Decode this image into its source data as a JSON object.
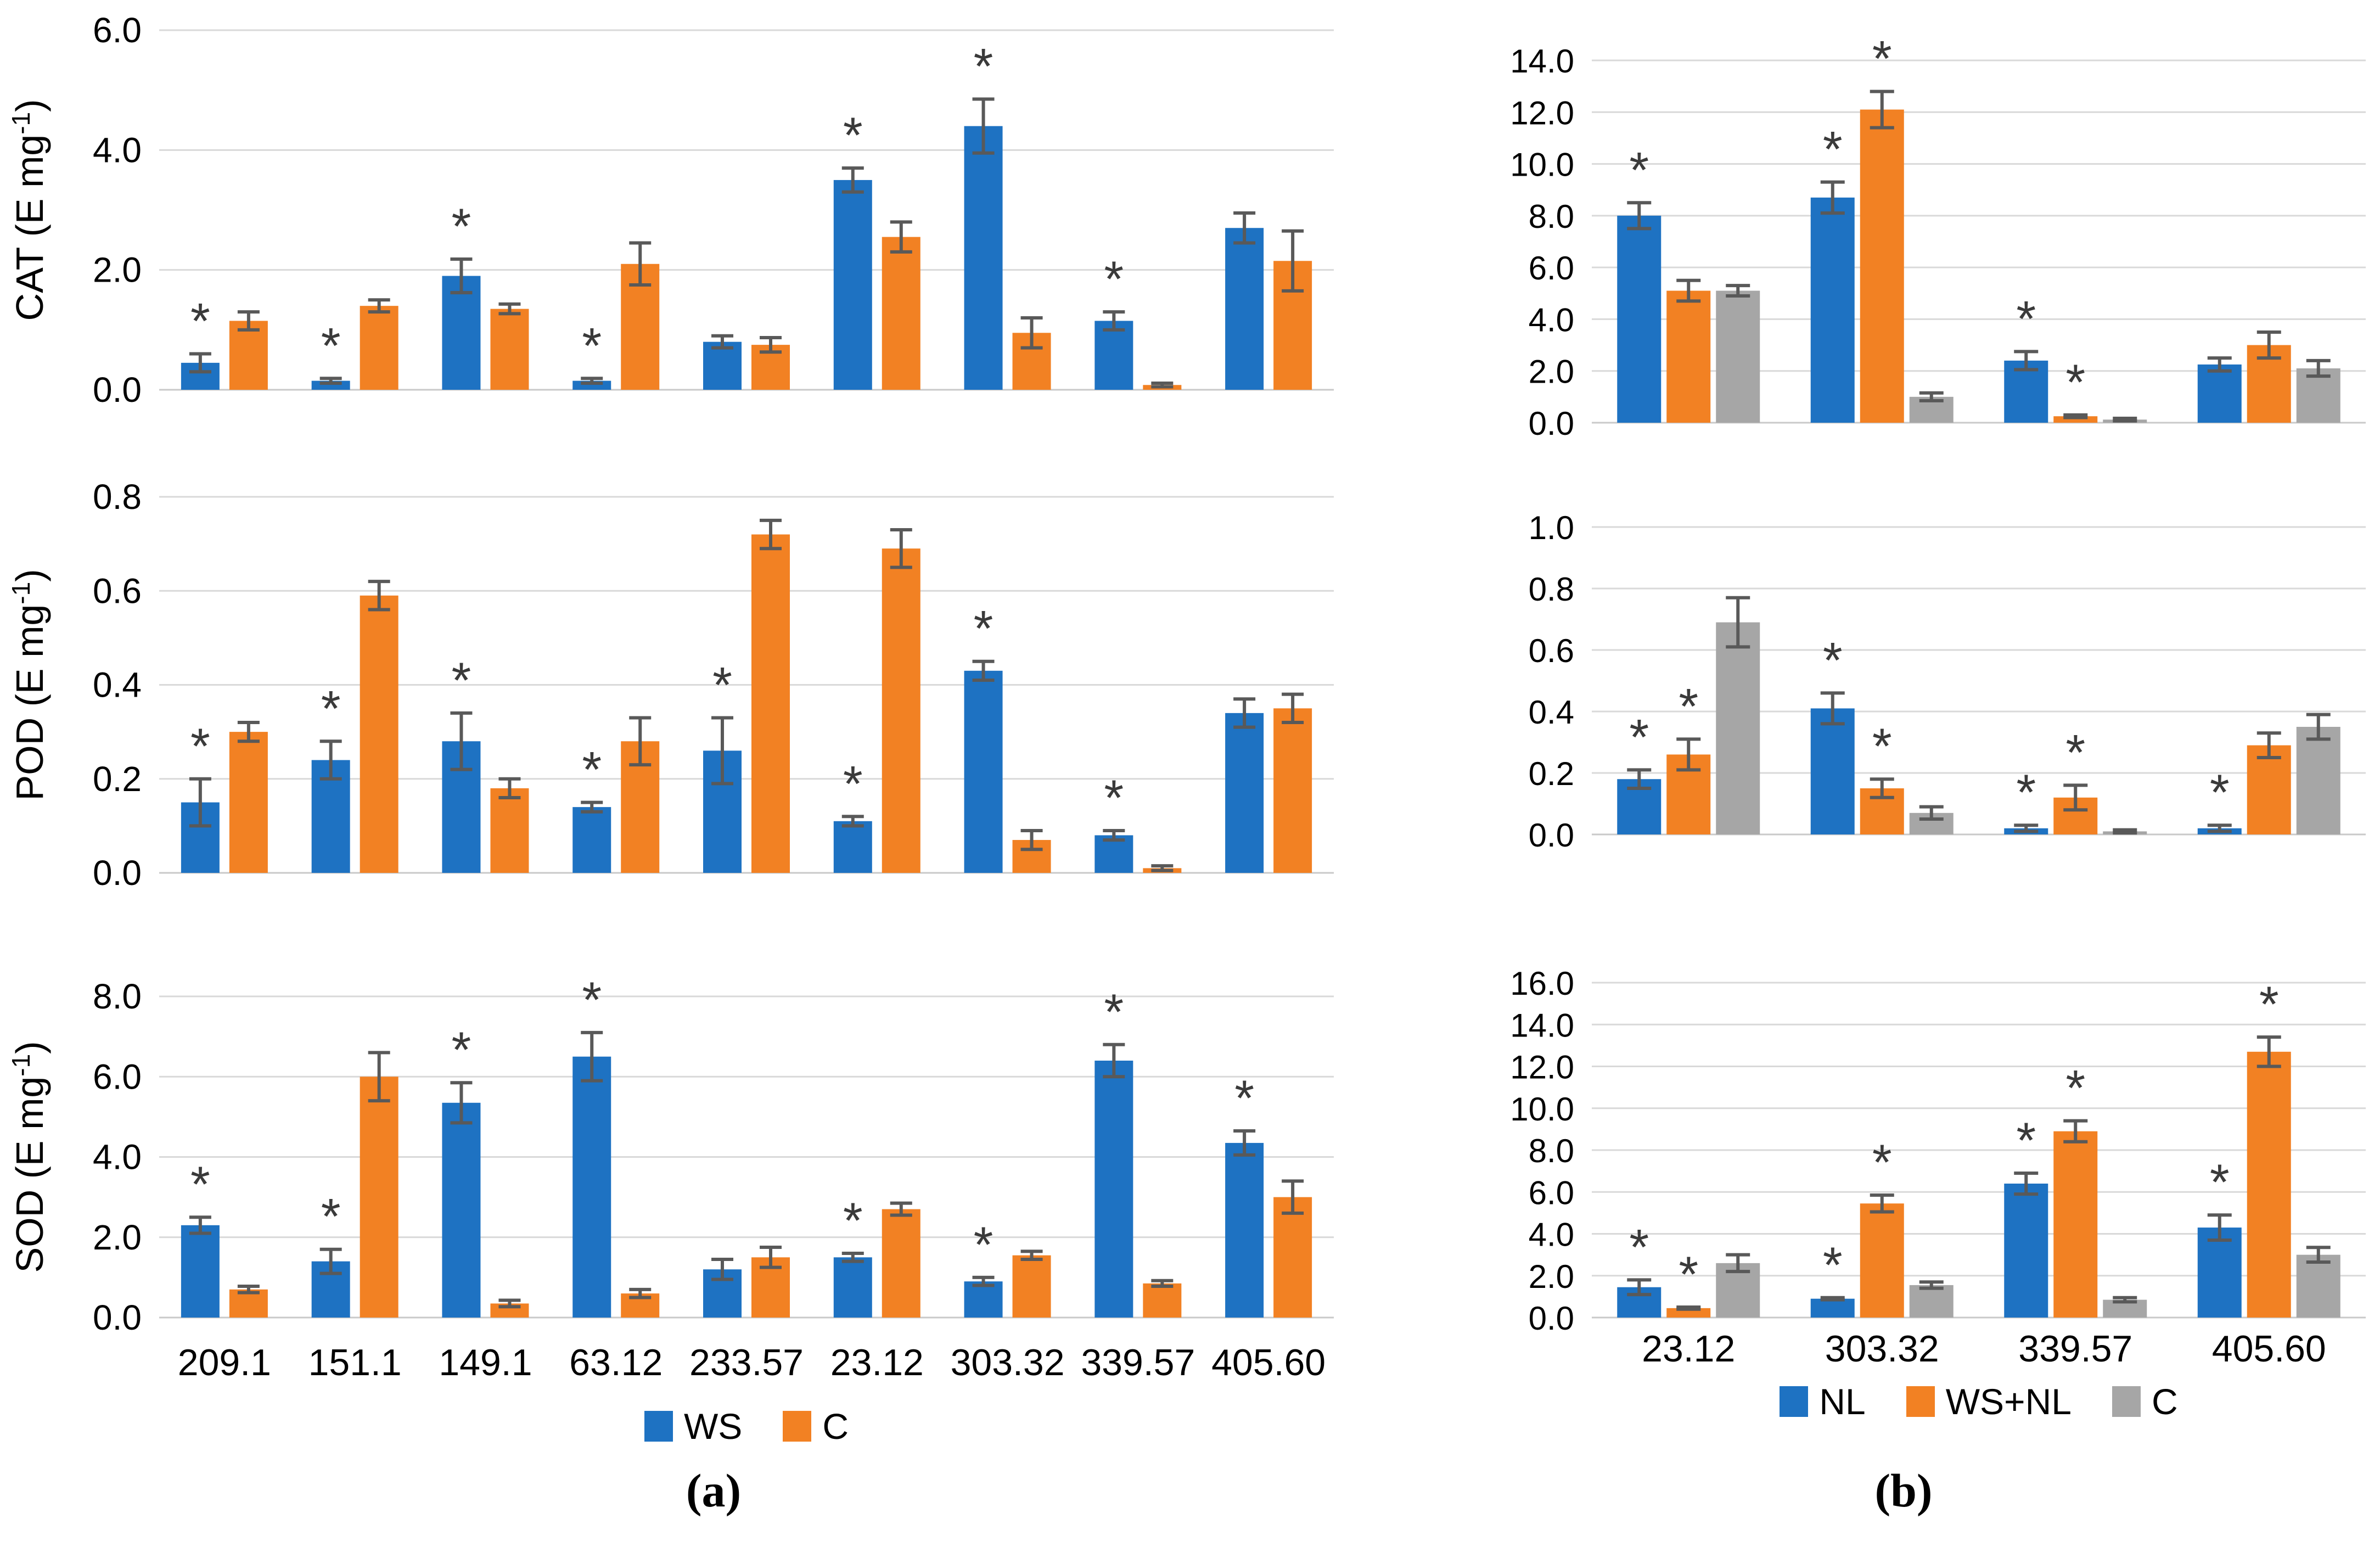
{
  "panels": [
    {
      "id": "a",
      "caption": "(a)",
      "legend": [
        {
          "label": "WS",
          "color": "#1e72c2"
        },
        {
          "label": "C",
          "color": "#f28123"
        }
      ]
    },
    {
      "id": "b",
      "caption": "(b)",
      "legend": [
        {
          "label": "NL",
          "color": "#1e72c2"
        },
        {
          "label": "WS+NL",
          "color": "#f28123"
        },
        {
          "label": "C",
          "color": "#a6a6a6"
        }
      ]
    }
  ],
  "colors": {
    "blue": "#1e72c2",
    "orange": "#f28123",
    "gray": "#a6a6a6",
    "error_bar": "#595959",
    "gridline": "#d9d9d9",
    "axis_line": "#c9c9c9",
    "significance": "#3a3a3a",
    "text": "#000000"
  },
  "significance_marker": "*",
  "chart_data": [
    {
      "type": "bar",
      "panel": "a",
      "ylabel": "CAT (E mg-1)",
      "ylabel_main": "CAT (E mg",
      "ylabel_sup": "-1",
      "ylabel_close": ")",
      "ylim": [
        0,
        6.0
      ],
      "ystep": 2.0,
      "grid": true,
      "legend_position": "none",
      "categories": [
        "209.1",
        "151.1",
        "149.1",
        "63.12",
        "233.57",
        "23.12",
        "303.32",
        "339.57",
        "405.60"
      ],
      "series": [
        {
          "name": "WS",
          "color": "#1e72c2",
          "values": [
            0.45,
            0.15,
            1.9,
            0.15,
            0.8,
            3.5,
            4.4,
            1.15,
            2.7
          ],
          "errors": [
            0.15,
            0.04,
            0.28,
            0.04,
            0.1,
            0.2,
            0.45,
            0.15,
            0.25
          ],
          "sig": [
            true,
            true,
            true,
            true,
            false,
            true,
            true,
            true,
            false
          ]
        },
        {
          "name": "C",
          "color": "#f28123",
          "values": [
            1.15,
            1.4,
            1.35,
            2.1,
            0.75,
            2.55,
            0.95,
            0.08,
            2.15
          ],
          "errors": [
            0.15,
            0.1,
            0.08,
            0.35,
            0.12,
            0.25,
            0.25,
            0.03,
            0.5
          ],
          "sig": [
            false,
            false,
            false,
            false,
            false,
            false,
            false,
            false,
            false
          ]
        }
      ]
    },
    {
      "type": "bar",
      "panel": "a",
      "ylabel": "POD (E mg-1)",
      "ylabel_main": "POD (E mg",
      "ylabel_sup": "-1",
      "ylabel_close": ")",
      "ylim": [
        0,
        0.8
      ],
      "ystep": 0.2,
      "grid": true,
      "legend_position": "none",
      "categories": [
        "209.1",
        "151.1",
        "149.1",
        "63.12",
        "233.57",
        "23.12",
        "303.32",
        "339.57",
        "405.60"
      ],
      "series": [
        {
          "name": "WS",
          "color": "#1e72c2",
          "values": [
            0.15,
            0.24,
            0.28,
            0.14,
            0.26,
            0.11,
            0.43,
            0.08,
            0.34
          ],
          "errors": [
            0.05,
            0.04,
            0.06,
            0.01,
            0.07,
            0.01,
            0.02,
            0.01,
            0.03
          ],
          "sig": [
            true,
            true,
            true,
            true,
            true,
            true,
            true,
            true,
            false
          ]
        },
        {
          "name": "C",
          "color": "#f28123",
          "values": [
            0.3,
            0.59,
            0.18,
            0.28,
            0.72,
            0.69,
            0.07,
            0.01,
            0.35
          ],
          "errors": [
            0.02,
            0.03,
            0.02,
            0.05,
            0.03,
            0.04,
            0.02,
            0.005,
            0.03
          ],
          "sig": [
            false,
            false,
            false,
            false,
            false,
            false,
            false,
            false,
            false
          ]
        }
      ]
    },
    {
      "type": "bar",
      "panel": "a",
      "ylabel": "SOD (E mg-1)",
      "ylabel_main": "SOD (E mg",
      "ylabel_sup": "-1",
      "ylabel_close": ")",
      "ylim": [
        0,
        8.0
      ],
      "ystep": 2.0,
      "grid": true,
      "legend_position": "bottom",
      "categories": [
        "209.1",
        "151.1",
        "149.1",
        "63.12",
        "233.57",
        "23.12",
        "303.32",
        "339.57",
        "405.60"
      ],
      "series": [
        {
          "name": "WS",
          "color": "#1e72c2",
          "values": [
            2.3,
            1.4,
            5.35,
            6.5,
            1.2,
            1.5,
            0.9,
            6.4,
            4.35
          ],
          "errors": [
            0.2,
            0.3,
            0.5,
            0.6,
            0.25,
            0.1,
            0.1,
            0.4,
            0.3
          ],
          "sig": [
            true,
            true,
            true,
            true,
            false,
            true,
            true,
            true,
            true
          ]
        },
        {
          "name": "C",
          "color": "#f28123",
          "values": [
            0.7,
            6.0,
            0.35,
            0.6,
            1.5,
            2.7,
            1.55,
            0.85,
            3.0
          ],
          "errors": [
            0.08,
            0.6,
            0.08,
            0.1,
            0.25,
            0.15,
            0.1,
            0.07,
            0.4
          ],
          "sig": [
            false,
            false,
            false,
            false,
            false,
            false,
            false,
            false,
            false
          ]
        }
      ]
    },
    {
      "type": "bar",
      "panel": "b",
      "ylim": [
        0,
        14.0
      ],
      "ystep": 2.0,
      "grid": true,
      "legend_position": "none",
      "categories": [
        "23.12",
        "303.32",
        "339.57",
        "405.60"
      ],
      "series": [
        {
          "name": "NL",
          "color": "#1e72c2",
          "values": [
            8.0,
            8.7,
            2.4,
            2.25
          ],
          "errors": [
            0.5,
            0.6,
            0.35,
            0.25
          ],
          "sig": [
            true,
            true,
            true,
            false
          ]
        },
        {
          "name": "WS+NL",
          "color": "#f28123",
          "values": [
            5.1,
            12.1,
            0.25,
            3.0
          ],
          "errors": [
            0.4,
            0.7,
            0.05,
            0.5
          ],
          "sig": [
            false,
            true,
            true,
            false
          ]
        },
        {
          "name": "C",
          "color": "#a6a6a6",
          "values": [
            5.1,
            1.0,
            0.12,
            2.1
          ],
          "errors": [
            0.2,
            0.15,
            0.05,
            0.3
          ],
          "sig": [
            false,
            false,
            false,
            false
          ]
        }
      ]
    },
    {
      "type": "bar",
      "panel": "b",
      "ylim": [
        0,
        1.0
      ],
      "ystep": 0.2,
      "grid": true,
      "legend_position": "none",
      "categories": [
        "23.12",
        "303.32",
        "339.57",
        "405.60"
      ],
      "series": [
        {
          "name": "NL",
          "color": "#1e72c2",
          "values": [
            0.18,
            0.41,
            0.02,
            0.02
          ],
          "errors": [
            0.03,
            0.05,
            0.01,
            0.01
          ],
          "sig": [
            true,
            true,
            true,
            true
          ]
        },
        {
          "name": "WS+NL",
          "color": "#f28123",
          "values": [
            0.26,
            0.15,
            0.12,
            0.29
          ],
          "errors": [
            0.05,
            0.03,
            0.04,
            0.04
          ],
          "sig": [
            true,
            true,
            true,
            false
          ]
        },
        {
          "name": "C",
          "color": "#a6a6a6",
          "values": [
            0.69,
            0.07,
            0.01,
            0.35
          ],
          "errors": [
            0.08,
            0.02,
            0.005,
            0.04
          ],
          "sig": [
            false,
            false,
            false,
            false
          ]
        }
      ]
    },
    {
      "type": "bar",
      "panel": "b",
      "ylim": [
        0,
        16.0
      ],
      "ystep": 2.0,
      "grid": true,
      "legend_position": "bottom",
      "categories": [
        "23.12",
        "303.32",
        "339.57",
        "405.60"
      ],
      "series": [
        {
          "name": "NL",
          "color": "#1e72c2",
          "values": [
            1.45,
            0.9,
            6.4,
            4.3
          ],
          "errors": [
            0.35,
            0.05,
            0.5,
            0.6
          ],
          "sig": [
            true,
            true,
            true,
            true
          ]
        },
        {
          "name": "WS+NL",
          "color": "#f28123",
          "values": [
            0.45,
            5.45,
            8.9,
            12.7
          ],
          "errors": [
            0.05,
            0.4,
            0.5,
            0.7
          ],
          "sig": [
            true,
            true,
            true,
            true
          ]
        },
        {
          "name": "C",
          "color": "#a6a6a6",
          "values": [
            2.6,
            1.55,
            0.85,
            3.0
          ],
          "errors": [
            0.4,
            0.15,
            0.1,
            0.35
          ],
          "sig": [
            false,
            false,
            false,
            false
          ]
        }
      ]
    }
  ]
}
